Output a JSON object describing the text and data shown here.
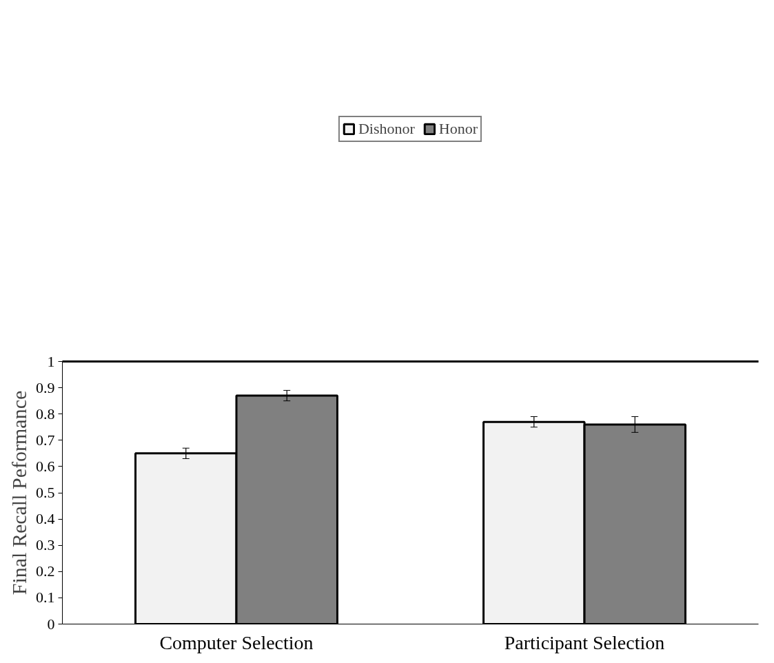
{
  "chart_data": {
    "type": "bar",
    "ylabel": "Final Recall Peformance",
    "categories": [
      "Computer Selection",
      "Participant Selection"
    ],
    "series": [
      {
        "name": "Dishonor",
        "color": "#f2f2f2",
        "values": [
          0.65,
          0.77
        ],
        "errors": [
          0.02,
          0.02
        ]
      },
      {
        "name": "Honor",
        "color": "#808080",
        "values": [
          0.87,
          0.76
        ],
        "errors": [
          0.02,
          0.03
        ]
      }
    ],
    "ylim": [
      0,
      1
    ],
    "yticks": [
      0,
      0.1,
      0.2,
      0.3,
      0.4,
      0.5,
      0.6,
      0.7,
      0.8,
      0.9,
      1
    ],
    "grid": false,
    "legend": "top"
  }
}
